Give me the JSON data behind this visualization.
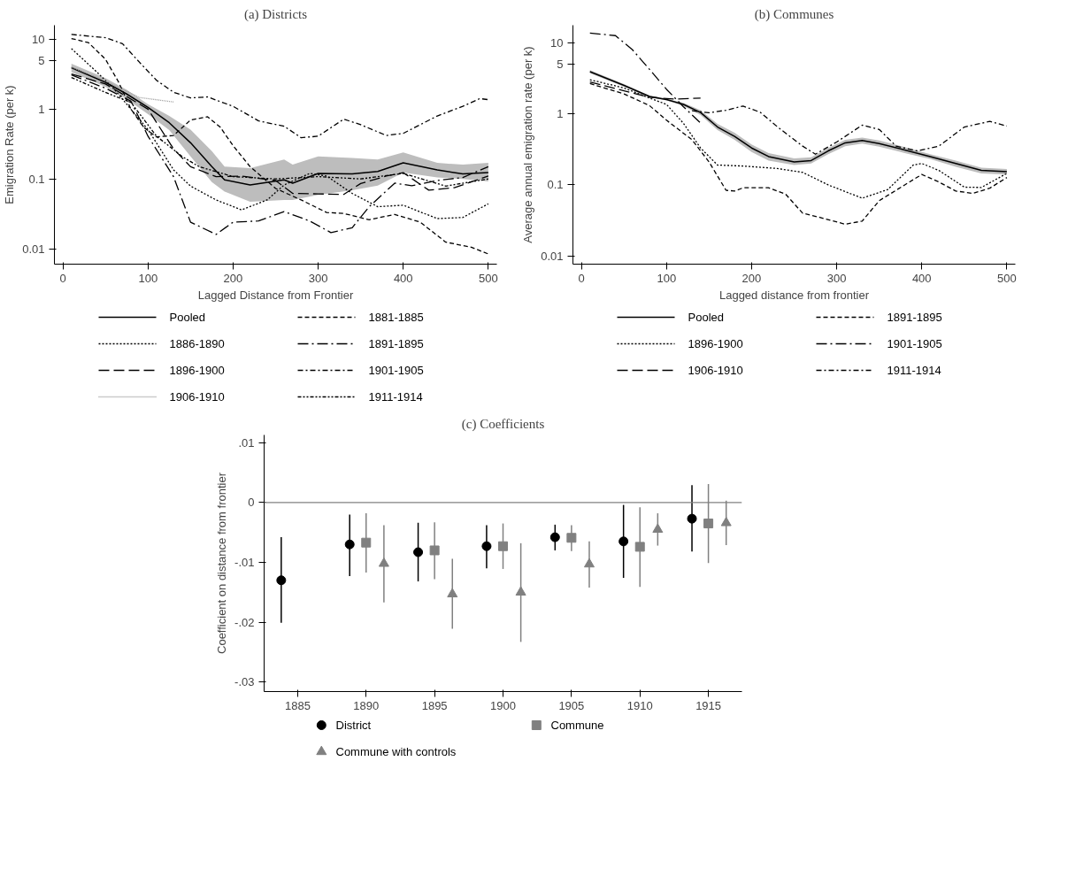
{
  "chart_data": [
    {
      "type": "line",
      "title": "(a) Districts",
      "xlabel": "Lagged Distance from Frontier",
      "ylabel": "Emigration Rate (per k)",
      "log": "y",
      "grid": false,
      "legend": "bottom",
      "xlim": [
        -10,
        510
      ],
      "ylim": [
        0.006,
        16
      ],
      "xticks": [
        0,
        100,
        200,
        300,
        400,
        500
      ],
      "yticks": [
        0.01,
        0.1,
        1,
        5,
        10
      ],
      "series": [
        {
          "name": "Pooled",
          "color": "#000000",
          "line_style": "solid",
          "x": [
            10,
            50,
            75,
            100,
            125,
            150,
            175,
            190,
            220,
            260,
            270,
            300,
            340,
            370,
            400,
            440,
            470,
            500
          ],
          "values": [
            3.93,
            2.43,
            1.65,
            1.06,
            0.64,
            0.33,
            0.15,
            0.097,
            0.082,
            0.097,
            0.087,
            0.12,
            0.118,
            0.128,
            0.17,
            0.135,
            0.118,
            0.123
          ],
          "lower": [
            3.4,
            2.1,
            1.4,
            0.85,
            0.5,
            0.21,
            0.09,
            0.066,
            0.047,
            0.05,
            0.05,
            0.059,
            0.069,
            0.08,
            0.123,
            0.105,
            0.1,
            0.092
          ],
          "upper": [
            4.5,
            2.8,
            1.9,
            1.18,
            0.8,
            0.51,
            0.25,
            0.15,
            0.143,
            0.19,
            0.16,
            0.21,
            0.2,
            0.19,
            0.24,
            0.17,
            0.16,
            0.17
          ]
        },
        {
          "name": "1881-1885",
          "color": "#000000",
          "line_style": "dashed",
          "x": [
            10,
            30,
            50,
            65,
            80,
            95,
            110,
            130,
            150,
            170,
            185,
            200,
            220,
            250,
            280,
            310,
            330,
            360,
            390,
            420,
            450,
            480,
            500
          ],
          "values": [
            10.3,
            9,
            5.2,
            2.5,
            1.0,
            0.55,
            0.4,
            0.42,
            0.7,
            0.78,
            0.55,
            0.3,
            0.15,
            0.073,
            0.05,
            0.033,
            0.032,
            0.026,
            0.031,
            0.024,
            0.0124,
            0.0105,
            0.0084
          ]
        },
        {
          "name": "1886-1890",
          "color": "#000000",
          "line_style": "dotted",
          "x": [
            10,
            40,
            60,
            100,
            130,
            150,
            180,
            210,
            240,
            260,
            290,
            310,
            340,
            370,
            400,
            440,
            470,
            500
          ],
          "values": [
            7.4,
            3.4,
            1.95,
            0.51,
            0.135,
            0.079,
            0.05,
            0.036,
            0.05,
            0.082,
            0.12,
            0.11,
            0.062,
            0.04,
            0.042,
            0.027,
            0.028,
            0.044
          ]
        },
        {
          "name": "1891-1895",
          "color": "#000000",
          "line_style": "longdashdot",
          "x": [
            10,
            50,
            80,
            100,
            130,
            150,
            180,
            200,
            230,
            260,
            290,
            315,
            340,
            360,
            390,
            410,
            440,
            470,
            500
          ],
          "values": [
            3.1,
            2.0,
            1.3,
            0.41,
            0.108,
            0.024,
            0.016,
            0.024,
            0.025,
            0.034,
            0.025,
            0.017,
            0.02,
            0.04,
            0.087,
            0.08,
            0.095,
            0.105,
            0.15
          ]
        },
        {
          "name": "1896-1900",
          "color": "#000000",
          "line_style": "longdash",
          "x": [
            10,
            50,
            100,
            130,
            150,
            180,
            210,
            250,
            270,
            300,
            330,
            350,
            380,
            400,
            430,
            460,
            500
          ],
          "values": [
            3.2,
            2.3,
            1.0,
            0.27,
            0.15,
            0.108,
            0.11,
            0.095,
            0.062,
            0.061,
            0.06,
            0.086,
            0.11,
            0.123,
            0.069,
            0.075,
            0.11
          ]
        },
        {
          "name": "1901-1905",
          "color": "#000000",
          "line_style": "dashdot",
          "x": [
            10,
            50,
            70,
            90,
            110,
            130,
            150,
            170,
            200,
            230,
            260,
            280,
            300,
            330,
            350,
            380,
            400,
            440,
            470,
            490,
            500
          ],
          "values": [
            11.8,
            10.6,
            8.7,
            4.7,
            2.6,
            1.75,
            1.45,
            1.5,
            1.1,
            0.68,
            0.57,
            0.39,
            0.41,
            0.72,
            0.6,
            0.42,
            0.45,
            0.8,
            1.1,
            1.42,
            1.37
          ]
        },
        {
          "name": "1906-1910",
          "color": "#999999",
          "line_style": "finedot",
          "x": [
            10,
            50,
            90,
            130
          ],
          "values": [
            4.0,
            2.55,
            1.47,
            1.27
          ]
        },
        {
          "name": "1911-1914",
          "color": "#000000",
          "line_style": "dashdotdot",
          "x": [
            10,
            50,
            80,
            110,
            140,
            160,
            200,
            250,
            300,
            350,
            400,
            450,
            500
          ],
          "values": [
            2.85,
            1.74,
            1.25,
            0.41,
            0.21,
            0.15,
            0.108,
            0.1,
            0.108,
            0.1,
            0.12,
            0.079,
            0.1
          ]
        }
      ]
    },
    {
      "type": "line",
      "title": "(b) Communes",
      "xlabel": "Lagged distance from frontier",
      "ylabel": "Average annual emigration rate (per k)",
      "log": "y",
      "grid": false,
      "legend": "bottom",
      "xlim": [
        -10,
        510
      ],
      "ylim": [
        0.0077,
        17.5
      ],
      "xticks": [
        0,
        100,
        200,
        300,
        400,
        500
      ],
      "yticks": [
        0.01,
        0.1,
        1,
        5,
        10
      ],
      "series": [
        {
          "name": "Pooled",
          "color": "#000000",
          "line_style": "solid",
          "x": [
            10,
            50,
            80,
            100,
            120,
            140,
            160,
            180,
            200,
            220,
            250,
            270,
            290,
            310,
            330,
            350,
            380,
            410,
            440,
            470,
            500
          ],
          "values": [
            3.9,
            2.5,
            1.75,
            1.58,
            1.35,
            1.04,
            0.65,
            0.48,
            0.33,
            0.25,
            0.21,
            0.22,
            0.3,
            0.39,
            0.42,
            0.38,
            0.31,
            0.25,
            0.2,
            0.16,
            0.153
          ],
          "lower": [
            3.7,
            2.4,
            1.7,
            1.54,
            1.28,
            0.96,
            0.59,
            0.43,
            0.29,
            0.22,
            0.19,
            0.2,
            0.27,
            0.35,
            0.38,
            0.345,
            0.28,
            0.23,
            0.18,
            0.145,
            0.14
          ],
          "upper": [
            4.1,
            2.6,
            1.8,
            1.62,
            1.42,
            1.12,
            0.72,
            0.54,
            0.37,
            0.28,
            0.235,
            0.245,
            0.33,
            0.43,
            0.46,
            0.42,
            0.34,
            0.27,
            0.22,
            0.175,
            0.167
          ]
        },
        {
          "name": "1891-1895",
          "color": "#000000",
          "line_style": "dashed",
          "x": [
            10,
            50,
            80,
            100,
            130,
            150,
            170,
            180,
            190,
            220,
            240,
            260,
            280,
            310,
            330,
            350,
            380,
            400,
            420,
            440,
            460,
            480,
            500
          ],
          "values": [
            2.65,
            1.9,
            1.3,
            0.81,
            0.43,
            0.21,
            0.084,
            0.082,
            0.091,
            0.091,
            0.074,
            0.04,
            0.035,
            0.028,
            0.031,
            0.06,
            0.1,
            0.14,
            0.11,
            0.082,
            0.076,
            0.09,
            0.127
          ]
        },
        {
          "name": "1896-1900",
          "color": "#000000",
          "line_style": "dotted",
          "x": [
            10,
            50,
            80,
            100,
            120,
            140,
            160,
            190,
            230,
            260,
            290,
            330,
            360,
            390,
            400,
            420,
            450,
            470,
            500
          ],
          "values": [
            3.0,
            2.3,
            1.66,
            1.35,
            0.73,
            0.33,
            0.19,
            0.184,
            0.17,
            0.15,
            0.1,
            0.065,
            0.086,
            0.19,
            0.2,
            0.16,
            0.093,
            0.092,
            0.145
          ]
        },
        {
          "name": "1901-1905",
          "color": "#000000",
          "line_style": "longdashdot",
          "x": [
            10,
            40,
            60,
            80,
            100,
            120,
            140
          ],
          "values": [
            13.6,
            12.5,
            7.9,
            4.2,
            2.2,
            1.25,
            0.74
          ]
        },
        {
          "name": "1906-1910",
          "color": "#000000",
          "line_style": "longdash",
          "x": [
            10,
            50,
            80,
            110,
            140
          ],
          "values": [
            2.8,
            2.1,
            1.7,
            1.6,
            1.66
          ]
        },
        {
          "name": "1911-1914",
          "color": "#000000",
          "line_style": "dashdot",
          "x": [
            130,
            150,
            170,
            190,
            210,
            230,
            260,
            275,
            300,
            330,
            350,
            370,
            395,
            420,
            450,
            480,
            500
          ],
          "values": [
            1.1,
            1.03,
            1.12,
            1.28,
            1.05,
            0.66,
            0.35,
            0.27,
            0.4,
            0.69,
            0.6,
            0.35,
            0.3,
            0.35,
            0.65,
            0.78,
            0.67
          ]
        }
      ]
    },
    {
      "type": "scatter",
      "title": "(c) Coefficients",
      "ylabel": "Coefficient on distance from frontier",
      "grid": false,
      "legend": "bottom",
      "xlim": [
        1882.55,
        1917.45
      ],
      "ylim": [
        -0.0316,
        0.0113
      ],
      "xticks": [
        1885,
        1890,
        1895,
        1900,
        1905,
        1910,
        1915
      ],
      "yticks": [
        {
          "value": 0.01,
          "label": ".01"
        },
        {
          "value": 0,
          "label": "0"
        },
        {
          "value": -0.01,
          "label": "-.01"
        },
        {
          "value": -0.02,
          "label": "-.02"
        },
        {
          "value": -0.03,
          "label": "-.03"
        }
      ],
      "ref_lines": [
        {
          "axis": "y",
          "value": 0,
          "label": null,
          "color": "#808080"
        }
      ],
      "series": [
        {
          "name": "District",
          "color": "#000000",
          "marker": "circle",
          "x": [
            1883.8,
            1888.8,
            1893.8,
            1898.8,
            1903.8,
            1908.8,
            1913.8
          ],
          "values": [
            -0.013,
            -0.007,
            -0.0083,
            -0.0073,
            -0.0058,
            -0.0065,
            -0.0027
          ],
          "errors": [
            [
              -0.0201,
              -0.0058
            ],
            [
              -0.0123,
              -0.002
            ],
            [
              -0.0132,
              -0.0034
            ],
            [
              -0.011,
              -0.0038
            ],
            [
              -0.008,
              -0.0037
            ],
            [
              -0.0126,
              -0.0004
            ],
            [
              -0.0082,
              0.0029
            ]
          ]
        },
        {
          "name": "Commune",
          "color": "#808080",
          "marker": "square",
          "x": [
            1890,
            1895,
            1900,
            1905,
            1910,
            1915
          ],
          "values": [
            -0.0067,
            -0.008,
            -0.0073,
            -0.0059,
            -0.0074,
            -0.0035
          ],
          "errors": [
            [
              -0.0117,
              -0.0018
            ],
            [
              -0.0128,
              -0.0033
            ],
            [
              -0.0111,
              -0.0035
            ],
            [
              -0.0081,
              -0.0038
            ],
            [
              -0.0141,
              -0.0008
            ],
            [
              -0.0101,
              0.0031
            ]
          ]
        },
        {
          "name": "Commune with controls",
          "color": "#808080",
          "marker": "triangle",
          "x": [
            1891.3,
            1896.3,
            1901.3,
            1906.3,
            1911.3,
            1916.3
          ],
          "values": [
            -0.0102,
            -0.0153,
            -0.015,
            -0.0103,
            -0.0045,
            -0.0034
          ],
          "errors": [
            [
              -0.0167,
              -0.0038
            ],
            [
              -0.0211,
              -0.0094
            ],
            [
              -0.0233,
              -0.0068
            ],
            [
              -0.0142,
              -0.0065
            ],
            [
              -0.0072,
              -0.0018
            ],
            [
              -0.0071,
              0.0003
            ]
          ]
        }
      ]
    }
  ]
}
